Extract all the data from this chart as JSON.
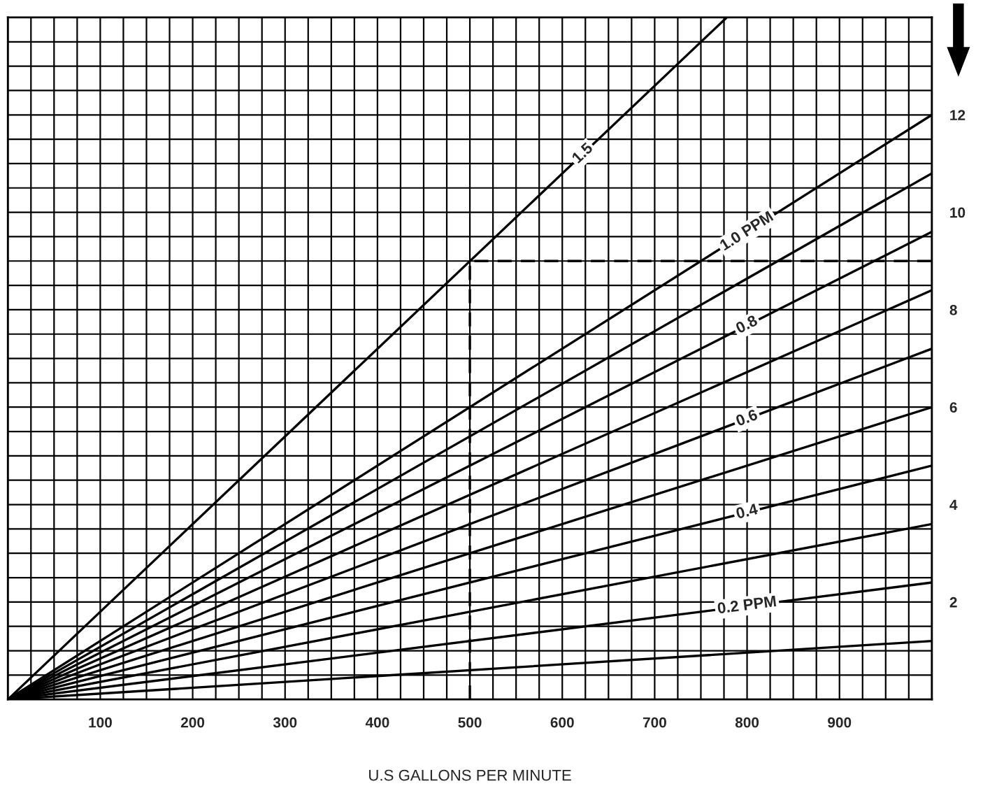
{
  "chart_data": {
    "type": "line",
    "xlabel": "U.S GALLONS PER MINUTE",
    "xlim": [
      0,
      1000
    ],
    "ylim": [
      0,
      14
    ],
    "xticks": [
      {
        "value": 0,
        "label": null
      },
      {
        "value": 25,
        "label": null
      },
      {
        "value": 50,
        "label": null
      },
      {
        "value": 75,
        "label": null
      },
      100,
      {
        "value": 125,
        "label": null
      },
      {
        "value": 150,
        "label": null
      },
      {
        "value": 175,
        "label": null
      },
      200,
      {
        "value": 225,
        "label": null
      },
      {
        "value": 250,
        "label": null
      },
      {
        "value": 275,
        "label": null
      },
      300,
      {
        "value": 325,
        "label": null
      },
      {
        "value": 350,
        "label": null
      },
      {
        "value": 375,
        "label": null
      },
      400,
      {
        "value": 425,
        "label": null
      },
      {
        "value": 450,
        "label": null
      },
      {
        "value": 475,
        "label": null
      },
      500,
      {
        "value": 525,
        "label": null
      },
      {
        "value": 550,
        "label": null
      },
      {
        "value": 575,
        "label": null
      },
      600,
      {
        "value": 625,
        "label": null
      },
      {
        "value": 650,
        "label": null
      },
      {
        "value": 675,
        "label": null
      },
      700,
      {
        "value": 725,
        "label": null
      },
      {
        "value": 750,
        "label": null
      },
      {
        "value": 775,
        "label": null
      },
      800,
      {
        "value": 825,
        "label": null
      },
      {
        "value": 850,
        "label": null
      },
      {
        "value": 875,
        "label": null
      },
      900,
      {
        "value": 925,
        "label": null
      },
      {
        "value": 950,
        "label": null
      },
      {
        "value": 975,
        "label": null
      },
      {
        "value": 1000,
        "label": null
      }
    ],
    "yticks": [
      {
        "value": 0,
        "label": null
      },
      {
        "value": 0.5,
        "label": null
      },
      {
        "value": 1,
        "label": null
      },
      {
        "value": 1.5,
        "label": null
      },
      2,
      {
        "value": 2.5,
        "label": null
      },
      {
        "value": 3,
        "label": null
      },
      {
        "value": 3.5,
        "label": null
      },
      4,
      {
        "value": 4.5,
        "label": null
      },
      {
        "value": 5,
        "label": null
      },
      {
        "value": 5.5,
        "label": null
      },
      6,
      {
        "value": 6.5,
        "label": null
      },
      {
        "value": 7,
        "label": null
      },
      {
        "value": 7.5,
        "label": null
      },
      8,
      {
        "value": 8.5,
        "label": null
      },
      {
        "value": 9,
        "label": null
      },
      {
        "value": 9.5,
        "label": null
      },
      10,
      {
        "value": 10.5,
        "label": null
      },
      {
        "value": 11,
        "label": null
      },
      {
        "value": 11.5,
        "label": null
      },
      12,
      {
        "value": 12.5,
        "label": null
      },
      {
        "value": 13,
        "label": null
      },
      {
        "value": 13.5,
        "label": null
      },
      {
        "value": 14,
        "label": null
      }
    ],
    "grid": true,
    "legend": false,
    "marker": "none",
    "series": [
      {
        "name": "1.5",
        "color": "#000000",
        "x": [
          0,
          778
        ],
        "values": [
          0,
          14
        ]
      },
      {
        "name": "1.0 PPM",
        "color": "#000000",
        "x": [
          0,
          1000
        ],
        "values": [
          0,
          12
        ]
      },
      {
        "color": "#000000",
        "x": [
          0,
          1000
        ],
        "values": [
          0,
          10.8
        ]
      },
      {
        "name": "0.8",
        "color": "#000000",
        "x": [
          0,
          1000
        ],
        "values": [
          0,
          9.6
        ]
      },
      {
        "color": "#000000",
        "x": [
          0,
          1000
        ],
        "values": [
          0,
          8.4
        ]
      },
      {
        "name": "0.6",
        "color": "#000000",
        "x": [
          0,
          1000
        ],
        "values": [
          0,
          7.2
        ]
      },
      {
        "color": "#000000",
        "x": [
          0,
          1000
        ],
        "values": [
          0,
          6.0
        ]
      },
      {
        "name": "0.4",
        "color": "#000000",
        "x": [
          0,
          1000
        ],
        "values": [
          0,
          4.8
        ]
      },
      {
        "color": "#000000",
        "x": [
          0,
          1000
        ],
        "values": [
          0,
          3.6
        ]
      },
      {
        "name": "0.2 PPM",
        "color": "#000000",
        "x": [
          0,
          1000
        ],
        "values": [
          0,
          2.4
        ]
      },
      {
        "color": "#000000",
        "x": [
          0,
          1000
        ],
        "values": [
          0,
          1.2
        ]
      },
      {
        "color": "#000000",
        "x": [
          500,
          500,
          1000
        ],
        "values": [
          0,
          9,
          9
        ],
        "line_style": "dashed"
      }
    ]
  }
}
